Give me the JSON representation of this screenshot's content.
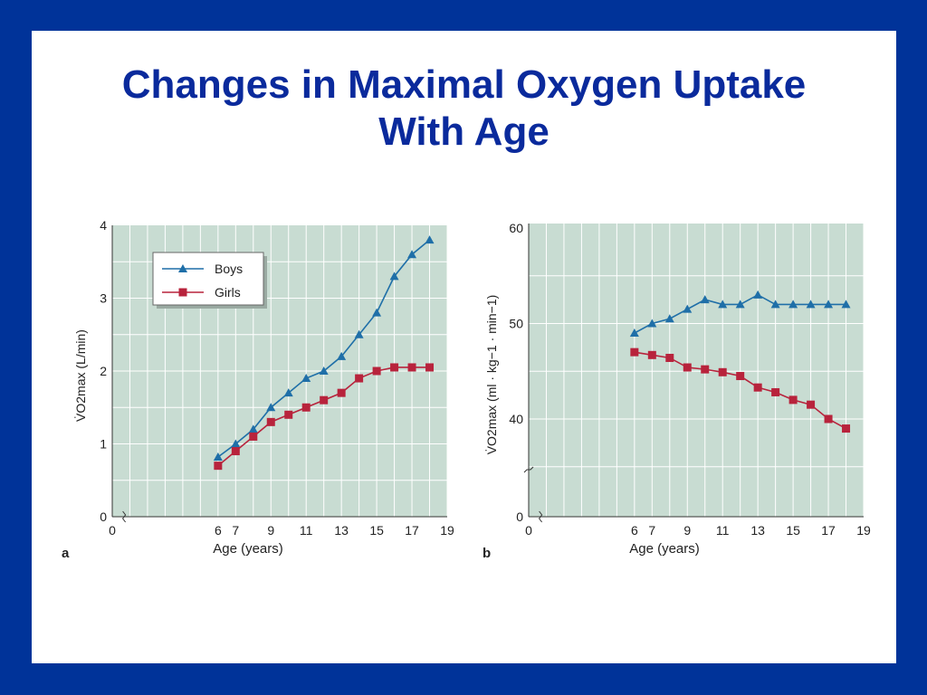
{
  "slide": {
    "title_line1": "Changes in Maximal Oxygen Uptake",
    "title_line2": "With Age"
  },
  "colors": {
    "background": "#003399",
    "title": "#0a2a9c",
    "plot_bg": "#c8dcd2",
    "grid": "#ffffff",
    "boys": "#1f6fa8",
    "girls": "#b8233c"
  },
  "chart_data": [
    {
      "type": "line",
      "panel_label": "a",
      "xlabel": "Age (years)",
      "ylabel": "V̇O2max (L/min)",
      "xticks": [
        "0",
        "6",
        "7",
        "9",
        "11",
        "13",
        "15",
        "17",
        "19"
      ],
      "yticks": [
        "0",
        "1",
        "2",
        "3",
        "4"
      ],
      "xlim": [
        0,
        19
      ],
      "ylim": [
        0,
        4
      ],
      "axis_break": true,
      "grid": true,
      "legend": {
        "placement": "top-left",
        "entries": [
          "Boys",
          "Girls"
        ]
      },
      "series": [
        {
          "name": "Boys",
          "marker": "triangle",
          "x": [
            6,
            7,
            8,
            9,
            10,
            11,
            12,
            13,
            14,
            15,
            16,
            17,
            18
          ],
          "y": [
            0.82,
            1.0,
            1.2,
            1.5,
            1.7,
            1.9,
            2.0,
            2.2,
            2.5,
            2.8,
            3.3,
            3.6,
            3.8
          ]
        },
        {
          "name": "Girls",
          "marker": "square",
          "x": [
            6,
            7,
            8,
            9,
            10,
            11,
            12,
            13,
            14,
            15,
            16,
            17,
            18
          ],
          "y": [
            0.7,
            0.9,
            1.1,
            1.3,
            1.4,
            1.5,
            1.6,
            1.7,
            1.9,
            2.0,
            2.05,
            2.05,
            2.05
          ]
        }
      ]
    },
    {
      "type": "line",
      "panel_label": "b",
      "xlabel": "Age (years)",
      "ylabel": "V̇O2max (ml · kg−1 · min−1)",
      "xticks": [
        "0",
        "6",
        "7",
        "9",
        "11",
        "13",
        "15",
        "17",
        "19"
      ],
      "yticks": [
        "0",
        "40",
        "50",
        "60"
      ],
      "xlim": [
        0,
        19
      ],
      "ylim": [
        30,
        60
      ],
      "axis_break": true,
      "grid": true,
      "series": [
        {
          "name": "Boys",
          "marker": "triangle",
          "x": [
            6,
            7,
            8,
            9,
            10,
            11,
            12,
            13,
            14,
            15,
            16,
            17,
            18
          ],
          "y": [
            49,
            50,
            50.5,
            51.5,
            52.5,
            52,
            52,
            53,
            52,
            52,
            52,
            52,
            52
          ]
        },
        {
          "name": "Girls",
          "marker": "square",
          "x": [
            6,
            7,
            8,
            9,
            10,
            11,
            12,
            13,
            14,
            15,
            16,
            17,
            18
          ],
          "y": [
            47,
            46.7,
            46.4,
            45.4,
            45.2,
            44.9,
            44.5,
            43.3,
            42.8,
            42,
            41.5,
            40,
            39
          ]
        }
      ]
    }
  ]
}
